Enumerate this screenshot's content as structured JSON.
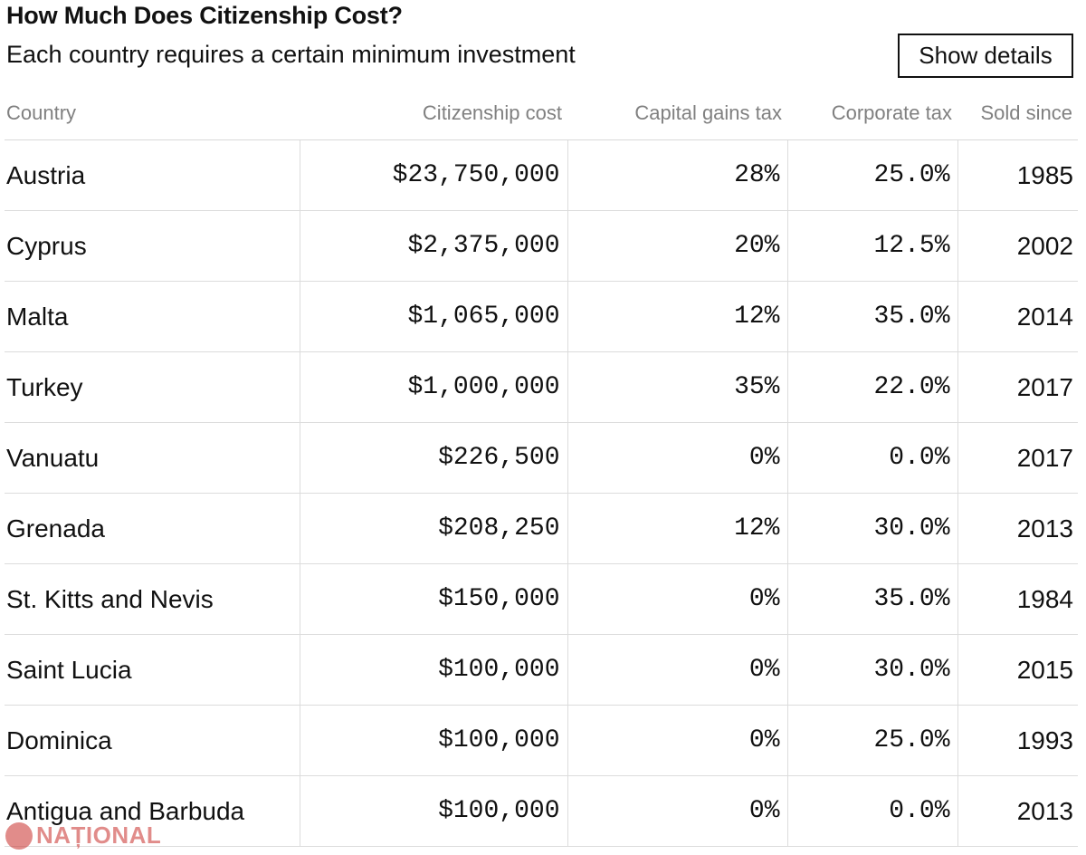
{
  "header": {
    "title": "How Much Does Citizenship Cost?",
    "subtitle": "Each country requires a certain minimum investment",
    "show_details_label": "Show details"
  },
  "watermark": {
    "text": "NAȚIONAL"
  },
  "chart_data": {
    "type": "table",
    "title": "How Much Does Citizenship Cost?",
    "subtitle": "Each country requires a certain minimum investment",
    "columns": [
      "Country",
      "Citizenship cost",
      "Capital gains tax",
      "Corporate tax",
      "Sold since"
    ],
    "rows": [
      [
        "Austria",
        "$23,750,000",
        "28%",
        "25.0%",
        "1985"
      ],
      [
        "Cyprus",
        "$2,375,000",
        "20%",
        "12.5%",
        "2002"
      ],
      [
        "Malta",
        "$1,065,000",
        "12%",
        "35.0%",
        "2014"
      ],
      [
        "Turkey",
        "$1,000,000",
        "35%",
        "22.0%",
        "2017"
      ],
      [
        "Vanuatu",
        "$226,500",
        "0%",
        "0.0%",
        "2017"
      ],
      [
        "Grenada",
        "$208,250",
        "12%",
        "30.0%",
        "2013"
      ],
      [
        "St. Kitts and Nevis",
        "$150,000",
        "0%",
        "35.0%",
        "1984"
      ],
      [
        "Saint Lucia",
        "$100,000",
        "0%",
        "30.0%",
        "2015"
      ],
      [
        "Dominica",
        "$100,000",
        "0%",
        "25.0%",
        "1993"
      ],
      [
        "Antigua and Barbuda",
        "$100,000",
        "0%",
        "0.0%",
        "2013"
      ]
    ]
  }
}
